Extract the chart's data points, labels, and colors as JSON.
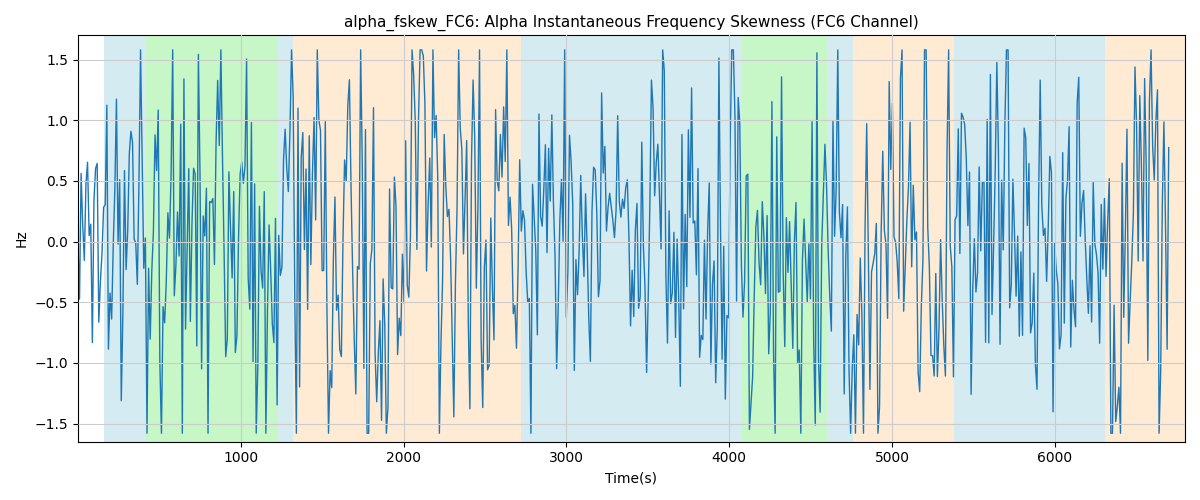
{
  "title": "alpha_fskew_FC6: Alpha Instantaneous Frequency Skewness (FC6 Channel)",
  "xlabel": "Time(s)",
  "ylabel": "Hz",
  "ylim": [
    -1.65,
    1.7
  ],
  "xlim": [
    0,
    6800
  ],
  "line_color": "#1f77b4",
  "line_width": 1.0,
  "background_color": "#ffffff",
  "grid_color": "#cccccc",
  "bands": [
    {
      "start": 160,
      "end": 420,
      "color": "#add8e6",
      "alpha": 0.5
    },
    {
      "start": 420,
      "end": 1220,
      "color": "#90ee90",
      "alpha": 0.5
    },
    {
      "start": 1220,
      "end": 1320,
      "color": "#add8e6",
      "alpha": 0.5
    },
    {
      "start": 1320,
      "end": 2720,
      "color": "#ffd8a8",
      "alpha": 0.5
    },
    {
      "start": 2720,
      "end": 3870,
      "color": "#add8e6",
      "alpha": 0.5
    },
    {
      "start": 3870,
      "end": 4080,
      "color": "#add8e6",
      "alpha": 0.5
    },
    {
      "start": 4080,
      "end": 4600,
      "color": "#90ee90",
      "alpha": 0.5
    },
    {
      "start": 4600,
      "end": 4760,
      "color": "#add8e6",
      "alpha": 0.5
    },
    {
      "start": 4760,
      "end": 5380,
      "color": "#ffd8a8",
      "alpha": 0.5
    },
    {
      "start": 5380,
      "end": 6200,
      "color": "#add8e6",
      "alpha": 0.5
    },
    {
      "start": 6200,
      "end": 6310,
      "color": "#add8e6",
      "alpha": 0.5
    },
    {
      "start": 6310,
      "end": 6800,
      "color": "#ffd8a8",
      "alpha": 0.5
    }
  ],
  "seed": 1234,
  "n_points": 680
}
